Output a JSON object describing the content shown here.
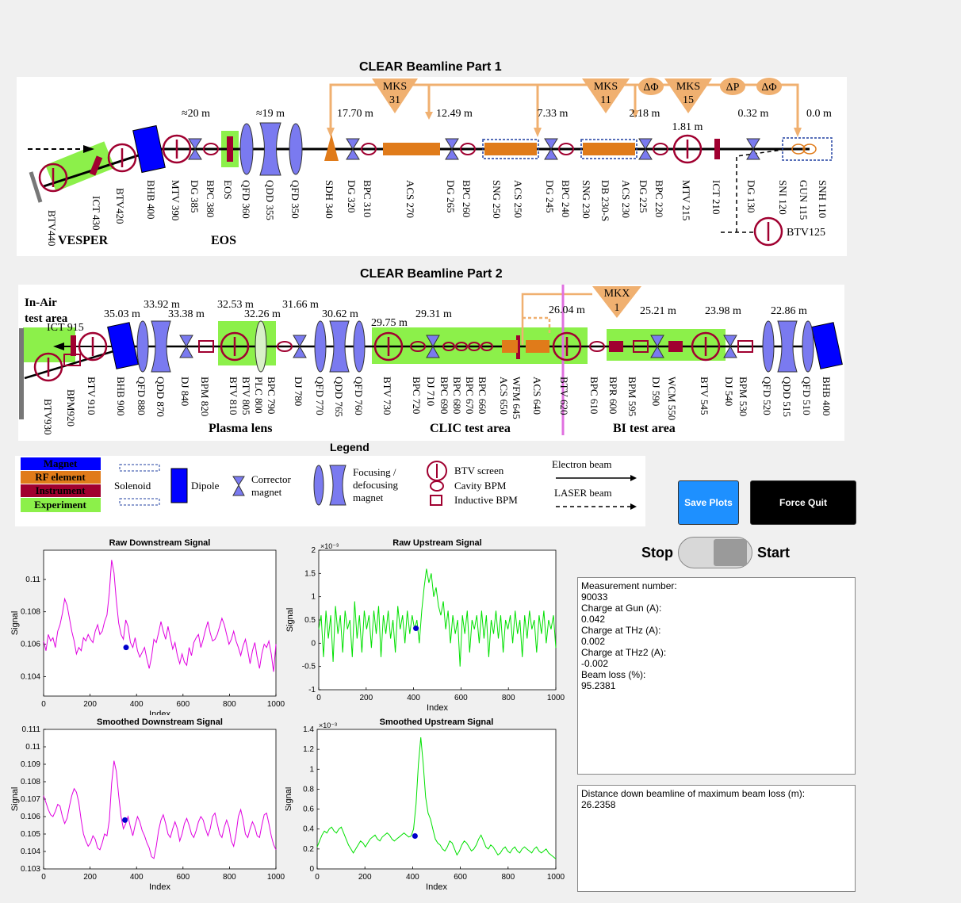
{
  "part1": {
    "title": "CLEAR Beamline Part 1",
    "distances": [
      "≈20 m",
      "≈19 m",
      "17.70 m",
      "12.49 m",
      "7.33 m",
      "2.18 m",
      "1.81 m",
      "0.32 m",
      "0.0 m"
    ],
    "rf": [
      "MKS",
      "31",
      "MKS",
      "11",
      "MKS",
      "15",
      "ΔΦ",
      "ΔP",
      "ΔΦ"
    ],
    "labels": [
      "BTV440",
      "ICT 430",
      "BTV420",
      "BHB 400",
      "MTV 390",
      "DG 385",
      "BPC 380",
      "EOS",
      "QFD 360",
      "QDD 355",
      "QFD 350",
      "SDH 340",
      "DG 320",
      "BPC 310",
      "ACS 270",
      "DG 265",
      "BPC 260",
      "SNG 250",
      "ACS 250",
      "DG 245",
      "BPC 240",
      "SNG 230",
      "DB 230-S",
      "ACS 230",
      "DG 225",
      "BPC 220",
      "MTV 215",
      "ICT 210",
      "DG 130",
      "SNI 120",
      "GUN 115",
      "SNH 110"
    ],
    "areas": [
      "VESPER",
      "EOS"
    ],
    "btv125": "BTV125"
  },
  "part2": {
    "title": "CLEAR Beamline Part 2",
    "inair1": "In-Air",
    "inair2": "test area",
    "ict915": "ICT 915",
    "mkx1": "MKX",
    "mkx2": "1",
    "distances": [
      "35.03 m",
      "33.92 m",
      "33.38 m",
      "32.53 m",
      "32.26 m",
      "31.66 m",
      "30.62 m",
      "29.75 m",
      "29.31 m",
      "26.04 m",
      "25.21 m",
      "23.98 m",
      "22.86 m"
    ],
    "labels": [
      "BTV930",
      "BPM920",
      "BTV 910",
      "BHB 900",
      "QFD 880",
      "QDD 870",
      "DJ 840",
      "BPM 820",
      "BTV 810",
      "BTV 805",
      "PLC 800",
      "BPC 790",
      "DJ 780",
      "QFD 770",
      "QDD 765",
      "QFD 760",
      "BTV 730",
      "BPC 720",
      "DJ 710",
      "BPC 690",
      "BPC 680",
      "BPC 670",
      "BPC 660",
      "ACS 650",
      "WFM 645",
      "ACS 640",
      "BTV 620",
      "BPC 610",
      "BPR 600",
      "BPM 595",
      "DJ 590",
      "WCM 550",
      "BTV 545",
      "DJ 540",
      "BPM 530",
      "QFD 520",
      "QDD 515",
      "QFD 510",
      "BHB 400"
    ],
    "areas": [
      "Plasma lens",
      "CLIC test area",
      "BI test area"
    ]
  },
  "legend": {
    "title": "Legend",
    "categories": [
      "Magnet",
      "RF element",
      "Instrument",
      "Experiment"
    ],
    "solenoid": "Solenoid",
    "dipole": "Dipole",
    "corrector1": "Corrector",
    "corrector2": "magnet",
    "focusing1": "Focusing /",
    "focusing2": "defocusing",
    "focusing3": "magnet",
    "btv": "BTV screen",
    "cavity": "Cavity BPM",
    "inductive": "Inductive BPM",
    "electron": "Electron beam",
    "laser": "LASER beam"
  },
  "colors": {
    "magnet": "#0000ff",
    "rf": "#e07b1a",
    "instrument": "#a00030",
    "experiment": "#8cf04a",
    "rfsource": "#f0b070",
    "quad": "#7a7af0",
    "downstream": "#e000e0",
    "upstream": "#00e000",
    "marker": "#0000cc",
    "saveButton": "#1e90ff"
  },
  "buttons": {
    "save": "Save Plots",
    "quit": "Force Quit"
  },
  "toggle": {
    "stop": "Stop",
    "start": "Start",
    "state": "off"
  },
  "measurement": {
    "lines": [
      "Measurement number:",
      "90033",
      "Charge at Gun (A):",
      "0.042",
      "Charge at THz (A):",
      "0.002",
      "Charge at THz2 (A):",
      "-0.002",
      "Beam loss (%):",
      "95.2381"
    ]
  },
  "distance": {
    "lines": [
      "Distance down beamline of maximum beam loss (m):",
      "26.2358"
    ]
  },
  "chart_data": [
    {
      "type": "line",
      "title": "Raw Downstream Signal",
      "xlabel": "Index",
      "ylabel": "Signal",
      "xlim": [
        0,
        1000
      ],
      "ylim": [
        0.1028,
        0.1118
      ],
      "xticks": [
        0,
        200,
        400,
        600,
        800,
        1000
      ],
      "yticks": [
        0.104,
        0.106,
        0.108,
        0.11
      ],
      "multiplier": "",
      "color": "#e000e0",
      "marker": {
        "x": 355,
        "y": 0.1058
      },
      "series": [
        {
          "values": [
            0.1062,
            0.1056,
            0.1066,
            0.1062,
            0.1064,
            0.1058,
            0.1068,
            0.1072,
            0.1079,
            0.1088,
            0.1084,
            0.1076,
            0.1068,
            0.1062,
            0.1054,
            0.1058,
            0.1056,
            0.1064,
            0.1062,
            0.1066,
            0.1063,
            0.1061,
            0.1068,
            0.1072,
            0.1066,
            0.1068,
            0.1074,
            0.1078,
            0.1092,
            0.1112,
            0.1104,
            0.1087,
            0.1073,
            0.1066,
            0.1063,
            0.1075,
            0.1071,
            0.1061,
            0.1058,
            0.1064,
            0.1056,
            0.1052,
            0.1055,
            0.1058,
            0.1051,
            0.1045,
            0.1052,
            0.1063,
            0.1061,
            0.1067,
            0.1074,
            0.1068,
            0.1063,
            0.1071,
            0.1064,
            0.1057,
            0.1061,
            0.1053,
            0.1048,
            0.1054,
            0.1049,
            0.1047,
            0.1058,
            0.1053,
            0.1061,
            0.1064,
            0.1066,
            0.1058,
            0.1063,
            0.1069,
            0.1074,
            0.1067,
            0.1062,
            0.1063,
            0.1066,
            0.1071,
            0.1076,
            0.1072,
            0.1066,
            0.106,
            0.1063,
            0.1068,
            0.1062,
            0.1058,
            0.1053,
            0.1059,
            0.1063,
            0.1056,
            0.1048,
            0.1056,
            0.1061,
            0.1052,
            0.1045,
            0.1054,
            0.106,
            0.1058,
            0.1062,
            0.1054,
            0.1043,
            0.106
          ]
        }
      ]
    },
    {
      "type": "line",
      "title": "Raw Upstream Signal",
      "xlabel": "Index",
      "ylabel": "Signal",
      "xlim": [
        0,
        1000
      ],
      "ylim": [
        -1,
        2
      ],
      "xticks": [
        0,
        200,
        400,
        600,
        800,
        1000
      ],
      "yticks": [
        -1,
        -0.5,
        0,
        0.5,
        1,
        1.5,
        2
      ],
      "multiplier": "×10⁻³",
      "color": "#00e000",
      "marker": {
        "x": 410,
        "y": 0.32
      },
      "series": [
        {
          "values": [
            0.3,
            0.6,
            -0.3,
            0.7,
            0.1,
            0.6,
            -0.4,
            0.8,
            0.2,
            0.6,
            -0.2,
            0.7,
            0.3,
            0.5,
            -0.3,
            0.9,
            0.1,
            0.6,
            -0.2,
            0.7,
            0.3,
            0.6,
            -0.1,
            0.7,
            0.2,
            0.8,
            -0.3,
            0.6,
            0.2,
            0.7,
            0.1,
            0.5,
            -0.2,
            0.8,
            0.3,
            0.6,
            0.0,
            0.7,
            0.2,
            0.6,
            0.3,
            0.5,
            0.0,
            0.7,
            1.2,
            1.6,
            1.3,
            1.5,
            1.0,
            1.2,
            0.8,
            0.6,
            0.9,
            0.3,
            0.7,
            0.0,
            0.6,
            0.2,
            0.5,
            -0.5,
            0.6,
            0.2,
            0.7,
            -0.2,
            0.5,
            0.3,
            0.6,
            0.0,
            0.7,
            0.1,
            0.6,
            -0.3,
            0.5,
            0.2,
            0.7,
            0.1,
            0.6,
            -0.2,
            0.5,
            0.3,
            0.6,
            0.0,
            0.7,
            0.2,
            0.5,
            -0.3,
            0.6,
            0.1,
            0.7,
            0.3,
            0.5,
            -0.2,
            0.6,
            0.2,
            0.7,
            0.0,
            0.5,
            0.3,
            0.6,
            -0.1
          ]
        }
      ]
    },
    {
      "type": "line",
      "title": "Smoothed Downstream Signal",
      "xlabel": "Index",
      "ylabel": "Signal",
      "xlim": [
        0,
        1000
      ],
      "ylim": [
        0.103,
        0.111
      ],
      "xticks": [
        0,
        200,
        400,
        600,
        800,
        1000
      ],
      "yticks": [
        0.103,
        0.104,
        0.105,
        0.106,
        0.107,
        0.108,
        0.109,
        0.11,
        0.111
      ],
      "multiplier": "",
      "color": "#e000e0",
      "marker": {
        "x": 350,
        "y": 0.1058
      },
      "series": [
        {
          "values": [
            0.1072,
            0.1068,
            0.1064,
            0.1061,
            0.106,
            0.1063,
            0.1067,
            0.1066,
            0.106,
            0.1056,
            0.1059,
            0.1066,
            0.1072,
            0.1076,
            0.1074,
            0.1068,
            0.1058,
            0.105,
            0.1046,
            0.1043,
            0.1045,
            0.1049,
            0.1047,
            0.1042,
            0.1041,
            0.1045,
            0.105,
            0.1049,
            0.1058,
            0.1079,
            0.1092,
            0.1086,
            0.1072,
            0.106,
            0.1053,
            0.1056,
            0.106,
            0.1054,
            0.1049,
            0.1055,
            0.106,
            0.1057,
            0.1052,
            0.1049,
            0.1045,
            0.1042,
            0.1037,
            0.1036,
            0.1043,
            0.1052,
            0.1058,
            0.1061,
            0.1056,
            0.105,
            0.1048,
            0.1053,
            0.1057,
            0.1053,
            0.1046,
            0.105,
            0.1056,
            0.1059,
            0.1055,
            0.105,
            0.1048,
            0.1052,
            0.1057,
            0.106,
            0.1058,
            0.1053,
            0.1049,
            0.1053,
            0.106,
            0.1062,
            0.1056,
            0.105,
            0.1048,
            0.1054,
            0.1058,
            0.1054,
            0.1046,
            0.1043,
            0.105,
            0.106,
            0.1064,
            0.1058,
            0.105,
            0.1048,
            0.1053,
            0.1057,
            0.1054,
            0.1049,
            0.1048,
            0.1055,
            0.1061,
            0.1062,
            0.1056,
            0.1049,
            0.1044,
            0.1041
          ]
        }
      ]
    },
    {
      "type": "line",
      "title": "Smoothed Upstream Signal",
      "xlabel": "Index",
      "ylabel": "Signal",
      "xlim": [
        0,
        1000
      ],
      "ylim": [
        0,
        1.4
      ],
      "xticks": [
        0,
        200,
        400,
        600,
        800,
        1000
      ],
      "yticks": [
        0,
        0.2,
        0.4,
        0.6,
        0.8,
        1,
        1.2,
        1.4
      ],
      "multiplier": "×10⁻³",
      "color": "#00e000",
      "marker": {
        "x": 410,
        "y": 0.33
      },
      "series": [
        {
          "values": [
            0.22,
            0.28,
            0.34,
            0.38,
            0.36,
            0.4,
            0.42,
            0.38,
            0.36,
            0.4,
            0.42,
            0.36,
            0.3,
            0.24,
            0.2,
            0.16,
            0.2,
            0.24,
            0.28,
            0.26,
            0.22,
            0.26,
            0.3,
            0.32,
            0.34,
            0.3,
            0.28,
            0.32,
            0.34,
            0.36,
            0.34,
            0.3,
            0.28,
            0.3,
            0.32,
            0.34,
            0.36,
            0.34,
            0.32,
            0.33,
            0.4,
            0.65,
            1.05,
            1.32,
            1.05,
            0.72,
            0.56,
            0.5,
            0.4,
            0.3,
            0.26,
            0.24,
            0.2,
            0.18,
            0.22,
            0.28,
            0.26,
            0.2,
            0.14,
            0.18,
            0.24,
            0.28,
            0.26,
            0.22,
            0.18,
            0.2,
            0.24,
            0.3,
            0.34,
            0.28,
            0.22,
            0.2,
            0.24,
            0.22,
            0.18,
            0.14,
            0.16,
            0.2,
            0.22,
            0.18,
            0.16,
            0.2,
            0.22,
            0.18,
            0.16,
            0.2,
            0.22,
            0.2,
            0.18,
            0.16,
            0.2,
            0.22,
            0.18,
            0.16,
            0.18,
            0.2,
            0.16,
            0.14,
            0.12,
            0.1
          ]
        }
      ]
    }
  ]
}
